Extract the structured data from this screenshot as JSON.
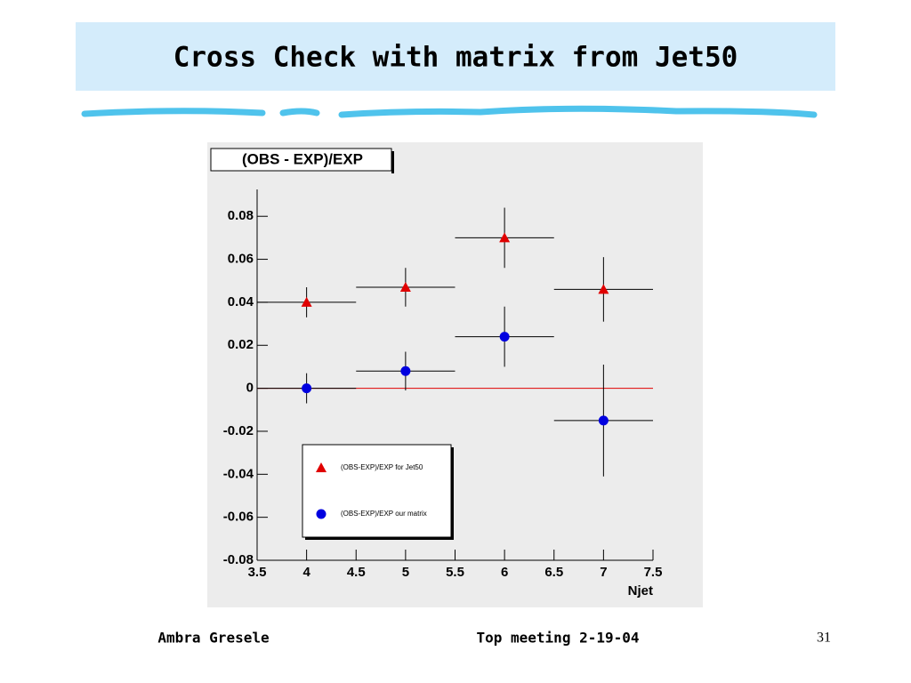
{
  "slide": {
    "title": "Cross Check with matrix from Jet50",
    "author": "Ambra Gresele",
    "event": "Top meeting 2-19-04",
    "page": "31"
  },
  "chart_data": {
    "type": "errorbar",
    "title": "(OBS - EXP)/EXP",
    "x_label": "Njet",
    "x": [
      4,
      5,
      6,
      7
    ],
    "series": [
      {
        "name": "(OBS-EXP)/EXP for Jet50",
        "color": "#e00000",
        "marker": "triangle",
        "values": [
          0.04,
          0.047,
          0.07,
          0.046
        ],
        "yerr": [
          0.007,
          0.009,
          0.014,
          0.015
        ],
        "xerr": [
          0.5,
          0.5,
          0.5,
          0.5
        ]
      },
      {
        "name": "(OBS-EXP)/EXP our matrix",
        "color": "#0000e0",
        "marker": "circle",
        "values": [
          0.0,
          0.008,
          0.024,
          -0.015
        ],
        "yerr": [
          0.007,
          0.009,
          0.014,
          0.026
        ],
        "xerr": [
          0.5,
          0.5,
          0.5,
          0.5
        ]
      }
    ],
    "reference_line": {
      "value": 0,
      "color": "#e00000"
    },
    "xlim": [
      3.5,
      7.5
    ],
    "xticks": [
      3.5,
      4,
      4.5,
      5,
      5.5,
      6,
      6.5,
      7,
      7.5
    ],
    "ylim": [
      -0.08,
      0.0925
    ],
    "yticks": [
      -0.08,
      -0.06,
      -0.04,
      -0.02,
      0,
      0.02,
      0.04,
      0.06,
      0.08
    ],
    "legend": "bottom-left"
  }
}
